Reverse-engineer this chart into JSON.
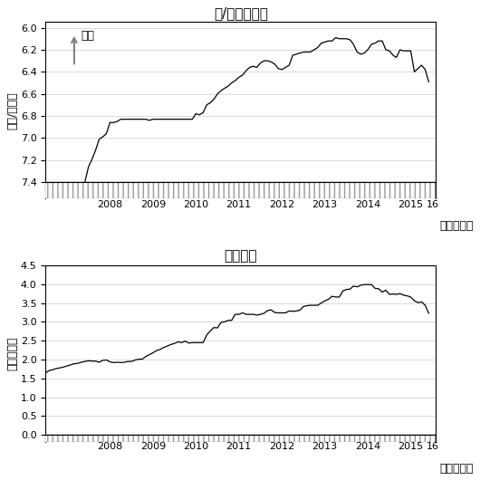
{
  "title1": "元/ドルレート",
  "title2": "外貨準備",
  "ylabel1": "（元/ドル）",
  "ylabel2": "（兆ドル）",
  "xlabel_label": "（年、月）",
  "ylim1": [
    7.4,
    6.0
  ],
  "yticks1": [
    6.0,
    6.2,
    6.4,
    6.6,
    6.8,
    7.0,
    7.2,
    7.4
  ],
  "ylim2": [
    0.0,
    4.5
  ],
  "yticks2": [
    0.0,
    0.5,
    1.0,
    1.5,
    2.0,
    2.5,
    3.0,
    3.5,
    4.0,
    4.5
  ],
  "line_color": "#000000",
  "bg_color": "#ffffff",
  "arrow_color": "#808080",
  "yuan_annotation": "元高",
  "year_start": 2007,
  "year_end": 2016,
  "font_size_title": 11,
  "font_size_label": 9,
  "font_size_tick": 8
}
